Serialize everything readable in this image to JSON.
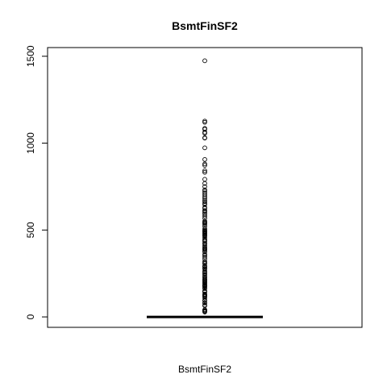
{
  "chart_data": {
    "type": "boxplot",
    "title": "BsmtFinSF2",
    "xlabel": "BsmtFinSF2",
    "ylabel": "",
    "ylim": [
      -60,
      1550
    ],
    "y_ticks": [
      0,
      500,
      1000,
      1500
    ],
    "y_tick_labels": [
      "0",
      "500",
      "1000",
      "1500"
    ],
    "box": {
      "min": 0,
      "q1": 0,
      "median": 0,
      "q3": 0,
      "max": 0
    },
    "outliers": [
      1474,
      1127,
      1120,
      1085,
      1080,
      1063,
      1057,
      1031,
      1029,
      973,
      906,
      880,
      872,
      841,
      832,
      792,
      768,
      750,
      731,
      723,
      713,
      702,
      691,
      682,
      671,
      663,
      654,
      647,
      630,
      624,
      612,
      608,
      600,
      592,
      580,
      568,
      551,
      546,
      541,
      539,
      532,
      522,
      507,
      500,
      495,
      492,
      488,
      482,
      479,
      473,
      469,
      465,
      456,
      446,
      440,
      435,
      425,
      420,
      411,
      403,
      396,
      391,
      387,
      380,
      374,
      360,
      354,
      345,
      334,
      319,
      311,
      306,
      294,
      290,
      287,
      279,
      276,
      264,
      258,
      252,
      246,
      239,
      230,
      228,
      219,
      215,
      210,
      206,
      201,
      196,
      193,
      186,
      182,
      180,
      177,
      175,
      168,
      163,
      150,
      147,
      143,
      132,
      128,
      123,
      121,
      117,
      108,
      96,
      93,
      81,
      80,
      68,
      64,
      41,
      40,
      35,
      32,
      28
    ]
  }
}
